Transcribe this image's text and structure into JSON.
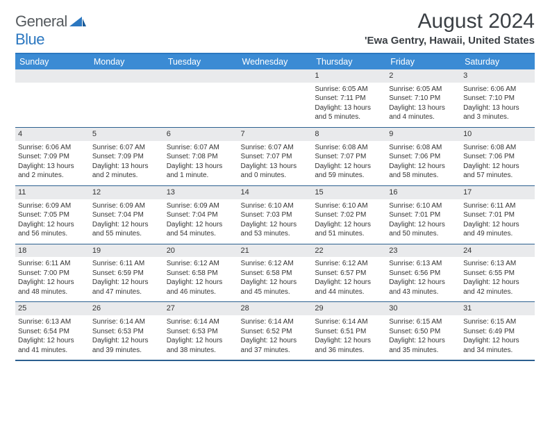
{
  "logo": {
    "part1": "General",
    "part2": "Blue"
  },
  "header": {
    "title": "August 2024",
    "location": "'Ewa Gentry, Hawaii, United States"
  },
  "daynames": [
    "Sunday",
    "Monday",
    "Tuesday",
    "Wednesday",
    "Thursday",
    "Friday",
    "Saturday"
  ],
  "colors": {
    "header_bg": "#3b8bd4",
    "border": "#2b5f8f",
    "daynum_bg": "#e9eaec",
    "logo_blue": "#2b77c0"
  },
  "weeks": [
    [
      null,
      null,
      null,
      null,
      {
        "n": "1",
        "sr": "Sunrise: 6:05 AM",
        "ss": "Sunset: 7:11 PM",
        "dl": "Daylight: 13 hours and 5 minutes."
      },
      {
        "n": "2",
        "sr": "Sunrise: 6:05 AM",
        "ss": "Sunset: 7:10 PM",
        "dl": "Daylight: 13 hours and 4 minutes."
      },
      {
        "n": "3",
        "sr": "Sunrise: 6:06 AM",
        "ss": "Sunset: 7:10 PM",
        "dl": "Daylight: 13 hours and 3 minutes."
      }
    ],
    [
      {
        "n": "4",
        "sr": "Sunrise: 6:06 AM",
        "ss": "Sunset: 7:09 PM",
        "dl": "Daylight: 13 hours and 2 minutes."
      },
      {
        "n": "5",
        "sr": "Sunrise: 6:07 AM",
        "ss": "Sunset: 7:09 PM",
        "dl": "Daylight: 13 hours and 2 minutes."
      },
      {
        "n": "6",
        "sr": "Sunrise: 6:07 AM",
        "ss": "Sunset: 7:08 PM",
        "dl": "Daylight: 13 hours and 1 minute."
      },
      {
        "n": "7",
        "sr": "Sunrise: 6:07 AM",
        "ss": "Sunset: 7:07 PM",
        "dl": "Daylight: 13 hours and 0 minutes."
      },
      {
        "n": "8",
        "sr": "Sunrise: 6:08 AM",
        "ss": "Sunset: 7:07 PM",
        "dl": "Daylight: 12 hours and 59 minutes."
      },
      {
        "n": "9",
        "sr": "Sunrise: 6:08 AM",
        "ss": "Sunset: 7:06 PM",
        "dl": "Daylight: 12 hours and 58 minutes."
      },
      {
        "n": "10",
        "sr": "Sunrise: 6:08 AM",
        "ss": "Sunset: 7:06 PM",
        "dl": "Daylight: 12 hours and 57 minutes."
      }
    ],
    [
      {
        "n": "11",
        "sr": "Sunrise: 6:09 AM",
        "ss": "Sunset: 7:05 PM",
        "dl": "Daylight: 12 hours and 56 minutes."
      },
      {
        "n": "12",
        "sr": "Sunrise: 6:09 AM",
        "ss": "Sunset: 7:04 PM",
        "dl": "Daylight: 12 hours and 55 minutes."
      },
      {
        "n": "13",
        "sr": "Sunrise: 6:09 AM",
        "ss": "Sunset: 7:04 PM",
        "dl": "Daylight: 12 hours and 54 minutes."
      },
      {
        "n": "14",
        "sr": "Sunrise: 6:10 AM",
        "ss": "Sunset: 7:03 PM",
        "dl": "Daylight: 12 hours and 53 minutes."
      },
      {
        "n": "15",
        "sr": "Sunrise: 6:10 AM",
        "ss": "Sunset: 7:02 PM",
        "dl": "Daylight: 12 hours and 51 minutes."
      },
      {
        "n": "16",
        "sr": "Sunrise: 6:10 AM",
        "ss": "Sunset: 7:01 PM",
        "dl": "Daylight: 12 hours and 50 minutes."
      },
      {
        "n": "17",
        "sr": "Sunrise: 6:11 AM",
        "ss": "Sunset: 7:01 PM",
        "dl": "Daylight: 12 hours and 49 minutes."
      }
    ],
    [
      {
        "n": "18",
        "sr": "Sunrise: 6:11 AM",
        "ss": "Sunset: 7:00 PM",
        "dl": "Daylight: 12 hours and 48 minutes."
      },
      {
        "n": "19",
        "sr": "Sunrise: 6:11 AM",
        "ss": "Sunset: 6:59 PM",
        "dl": "Daylight: 12 hours and 47 minutes."
      },
      {
        "n": "20",
        "sr": "Sunrise: 6:12 AM",
        "ss": "Sunset: 6:58 PM",
        "dl": "Daylight: 12 hours and 46 minutes."
      },
      {
        "n": "21",
        "sr": "Sunrise: 6:12 AM",
        "ss": "Sunset: 6:58 PM",
        "dl": "Daylight: 12 hours and 45 minutes."
      },
      {
        "n": "22",
        "sr": "Sunrise: 6:12 AM",
        "ss": "Sunset: 6:57 PM",
        "dl": "Daylight: 12 hours and 44 minutes."
      },
      {
        "n": "23",
        "sr": "Sunrise: 6:13 AM",
        "ss": "Sunset: 6:56 PM",
        "dl": "Daylight: 12 hours and 43 minutes."
      },
      {
        "n": "24",
        "sr": "Sunrise: 6:13 AM",
        "ss": "Sunset: 6:55 PM",
        "dl": "Daylight: 12 hours and 42 minutes."
      }
    ],
    [
      {
        "n": "25",
        "sr": "Sunrise: 6:13 AM",
        "ss": "Sunset: 6:54 PM",
        "dl": "Daylight: 12 hours and 41 minutes."
      },
      {
        "n": "26",
        "sr": "Sunrise: 6:14 AM",
        "ss": "Sunset: 6:53 PM",
        "dl": "Daylight: 12 hours and 39 minutes."
      },
      {
        "n": "27",
        "sr": "Sunrise: 6:14 AM",
        "ss": "Sunset: 6:53 PM",
        "dl": "Daylight: 12 hours and 38 minutes."
      },
      {
        "n": "28",
        "sr": "Sunrise: 6:14 AM",
        "ss": "Sunset: 6:52 PM",
        "dl": "Daylight: 12 hours and 37 minutes."
      },
      {
        "n": "29",
        "sr": "Sunrise: 6:14 AM",
        "ss": "Sunset: 6:51 PM",
        "dl": "Daylight: 12 hours and 36 minutes."
      },
      {
        "n": "30",
        "sr": "Sunrise: 6:15 AM",
        "ss": "Sunset: 6:50 PM",
        "dl": "Daylight: 12 hours and 35 minutes."
      },
      {
        "n": "31",
        "sr": "Sunrise: 6:15 AM",
        "ss": "Sunset: 6:49 PM",
        "dl": "Daylight: 12 hours and 34 minutes."
      }
    ]
  ]
}
